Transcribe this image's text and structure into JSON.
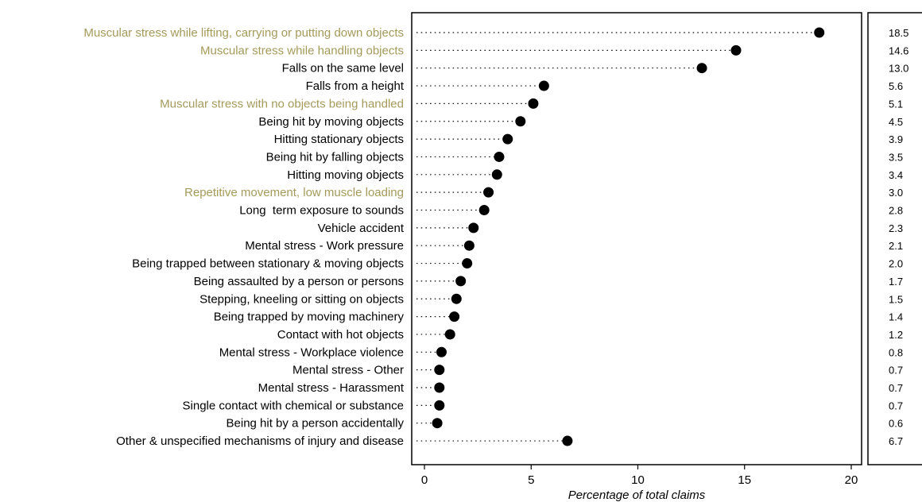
{
  "chart_data": {
    "type": "scatter",
    "xlabel": "Percentage of total claims",
    "xlim": [
      0,
      20
    ],
    "xticks": [
      0,
      5,
      10,
      15,
      20
    ],
    "grid": false,
    "legend": "none",
    "colors": {
      "highlight": "#a49a5b",
      "normal": "#000000",
      "marker": "#000000"
    },
    "categories": [
      {
        "label": "Muscular stress while lifting, carrying or putting down objects",
        "value": 18.5,
        "value_label": "18.5",
        "highlight": true
      },
      {
        "label": "Muscular stress while handling objects",
        "value": 14.6,
        "value_label": "14.6",
        "highlight": true
      },
      {
        "label": "Falls on the same level",
        "value": 13.0,
        "value_label": "13.0",
        "highlight": false
      },
      {
        "label": "Falls from a height",
        "value": 5.6,
        "value_label": "5.6",
        "highlight": false
      },
      {
        "label": "Muscular stress with no objects being handled",
        "value": 5.1,
        "value_label": "5.1",
        "highlight": true
      },
      {
        "label": "Being hit by moving objects",
        "value": 4.5,
        "value_label": "4.5",
        "highlight": false
      },
      {
        "label": "Hitting stationary objects",
        "value": 3.9,
        "value_label": "3.9",
        "highlight": false
      },
      {
        "label": "Being hit by falling objects",
        "value": 3.5,
        "value_label": "3.5",
        "highlight": false
      },
      {
        "label": "Hitting moving objects",
        "value": 3.4,
        "value_label": "3.4",
        "highlight": false
      },
      {
        "label": "Repetitive movement, low muscle loading",
        "value": 3.0,
        "value_label": "3.0",
        "highlight": true
      },
      {
        "label": "Long  term exposure to sounds",
        "value": 2.8,
        "value_label": "2.8",
        "highlight": false
      },
      {
        "label": "Vehicle accident",
        "value": 2.3,
        "value_label": "2.3",
        "highlight": false
      },
      {
        "label": "Mental stress - Work pressure",
        "value": 2.1,
        "value_label": "2.1",
        "highlight": false
      },
      {
        "label": "Being trapped between stationary & moving objects",
        "value": 2.0,
        "value_label": "2.0",
        "highlight": false
      },
      {
        "label": "Being assaulted by a person or persons",
        "value": 1.7,
        "value_label": "1.7",
        "highlight": false
      },
      {
        "label": "Stepping, kneeling or sitting on objects",
        "value": 1.5,
        "value_label": "1.5",
        "highlight": false
      },
      {
        "label": "Being trapped by moving machinery",
        "value": 1.4,
        "value_label": "1.4",
        "highlight": false
      },
      {
        "label": "Contact with hot objects",
        "value": 1.2,
        "value_label": "1.2",
        "highlight": false
      },
      {
        "label": "Mental stress - Workplace violence",
        "value": 0.8,
        "value_label": "0.8",
        "highlight": false
      },
      {
        "label": "Mental stress - Other",
        "value": 0.7,
        "value_label": "0.7",
        "highlight": false
      },
      {
        "label": "Mental stress - Harassment",
        "value": 0.7,
        "value_label": "0.7",
        "highlight": false
      },
      {
        "label": "Single contact with chemical or substance",
        "value": 0.7,
        "value_label": "0.7",
        "highlight": false
      },
      {
        "label": "Being hit by a person accidentally",
        "value": 0.6,
        "value_label": "0.6",
        "highlight": false
      },
      {
        "label": "Other & unspecified mechanisms of injury and disease",
        "value": 6.7,
        "value_label": "6.7",
        "highlight": false
      }
    ]
  }
}
